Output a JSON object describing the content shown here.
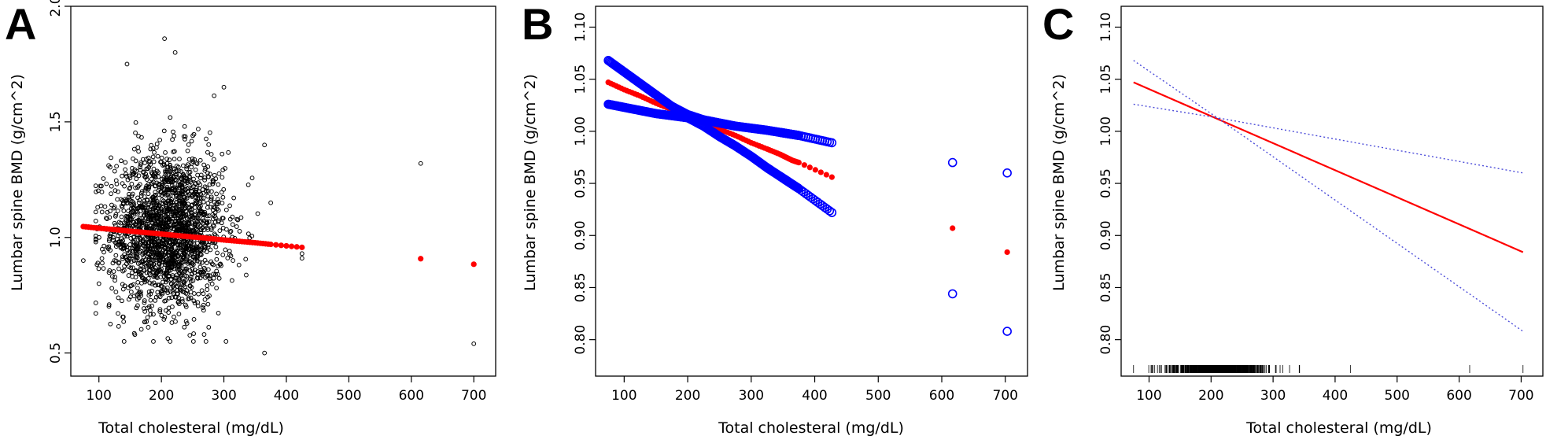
{
  "colors": {
    "points": "#000000",
    "fitted": "#ff0000",
    "ci": "#0000ff",
    "ci_line": "#4d4dd9"
  },
  "chart_data": [
    {
      "panel": "A",
      "type": "scatter",
      "xlabel": "Total cholesteral (mg/dL)",
      "ylabel": "Lumbar spine BMD (g/cm^2)",
      "xlim": [
        55,
        735
      ],
      "ylim": [
        0.4,
        2.0
      ],
      "xticks": [
        100,
        200,
        300,
        400,
        500,
        600,
        700
      ],
      "yticks": [
        0.5,
        1.0,
        1.5,
        2.0
      ],
      "ytick_labels": [
        "0.5",
        "1.0",
        "1.5",
        "2.0"
      ],
      "series": [
        {
          "role": "observed",
          "marker": "open-circle",
          "color": "#000000",
          "distribution": {
            "n": 2000,
            "x_mean": 210,
            "x_sd": 45,
            "y_mean": 1.03,
            "y_sd": 0.17
          },
          "points": [
            [
              75,
              0.9
            ],
            [
              98,
              1.13
            ],
            [
              100,
              0.8
            ],
            [
              105,
              1.11
            ],
            [
              365,
              1.4
            ],
            [
              365,
              0.5
            ],
            [
              375,
              1.15
            ],
            [
              425,
              0.91
            ],
            [
              425,
              0.93
            ],
            [
              615,
              1.32
            ],
            [
              700,
              0.54
            ],
            [
              205,
              1.86
            ],
            [
              222,
              1.8
            ],
            [
              300,
              1.65
            ],
            [
              145,
              1.75
            ]
          ]
        },
        {
          "role": "fitted",
          "marker": "filled-circle",
          "color": "#ff0000",
          "x": [
            75,
            100,
            125,
            150,
            175,
            200,
            225,
            250,
            275,
            300,
            325,
            350,
            375,
            425,
            615,
            700
          ],
          "y": [
            1.047,
            1.04,
            1.034,
            1.027,
            1.021,
            1.015,
            1.008,
            1.002,
            0.996,
            0.989,
            0.983,
            0.977,
            0.97,
            0.957,
            0.908,
            0.884
          ]
        }
      ]
    },
    {
      "panel": "B",
      "type": "scatter",
      "xlabel": "Total cholesteral (mg/dL)",
      "ylabel": "Lumbar spine BMD (g/cm^2)",
      "xlim": [
        55,
        735
      ],
      "ylim": [
        0.765,
        1.12
      ],
      "xticks": [
        100,
        200,
        300,
        400,
        500,
        600,
        700
      ],
      "yticks": [
        0.8,
        0.85,
        0.9,
        0.95,
        1.0,
        1.05,
        1.1
      ],
      "ytick_labels": [
        "0.80",
        "0.85",
        "0.90",
        "0.95",
        "1.00",
        "1.05",
        "1.10"
      ],
      "series": [
        {
          "role": "fitted",
          "marker": "filled-circle",
          "color": "#ff0000",
          "x": [
            75,
            100,
            125,
            150,
            175,
            200,
            225,
            250,
            275,
            300,
            325,
            345,
            355,
            365,
            375,
            427,
            617,
            703
          ],
          "y": [
            1.047,
            1.04,
            1.034,
            1.027,
            1.021,
            1.015,
            1.008,
            1.002,
            0.996,
            0.989,
            0.983,
            0.978,
            0.975,
            0.972,
            0.97,
            0.956,
            0.907,
            0.884
          ]
        },
        {
          "role": "upper-ci",
          "marker": "open-circle",
          "color": "#0000ff",
          "x": [
            75,
            100,
            125,
            150,
            175,
            200,
            225,
            250,
            275,
            300,
            325,
            345,
            355,
            365,
            375,
            427,
            617,
            703
          ],
          "y": [
            1.068,
            1.057,
            1.046,
            1.035,
            1.024,
            1.016,
            1.011,
            1.008,
            1.005,
            1.003,
            1.001,
            0.999,
            0.998,
            0.997,
            0.996,
            0.989,
            0.97,
            0.96
          ]
        },
        {
          "role": "lower-ci",
          "marker": "open-circle",
          "color": "#0000ff",
          "x": [
            75,
            100,
            125,
            150,
            175,
            200,
            225,
            250,
            275,
            300,
            325,
            345,
            355,
            365,
            375,
            427,
            617,
            703
          ],
          "y": [
            1.026,
            1.023,
            1.02,
            1.017,
            1.015,
            1.013,
            1.005,
            0.995,
            0.986,
            0.976,
            0.965,
            0.957,
            0.953,
            0.949,
            0.945,
            0.922,
            0.844,
            0.808
          ]
        }
      ]
    },
    {
      "panel": "C",
      "type": "line",
      "xlabel": "Total cholesteral (mg/dL)",
      "ylabel": "Lumbar spine BMD (g/cm^2)",
      "xlim": [
        55,
        735
      ],
      "ylim": [
        0.765,
        1.12
      ],
      "xticks": [
        100,
        200,
        300,
        400,
        500,
        600,
        700
      ],
      "yticks": [
        0.8,
        0.85,
        0.9,
        0.95,
        1.0,
        1.05,
        1.1
      ],
      "ytick_labels": [
        "0.80",
        "0.85",
        "0.90",
        "0.95",
        "1.00",
        "1.05",
        "1.10"
      ],
      "series": [
        {
          "role": "fitted",
          "style": "solid",
          "color": "#ff0000",
          "x": [
            75,
            703
          ],
          "y": [
            1.047,
            0.884
          ]
        },
        {
          "role": "upper-ci",
          "style": "dotted",
          "color": "#4d4dd9",
          "x": [
            75,
            210,
            703
          ],
          "y": [
            1.026,
            1.013,
            0.96
          ]
        },
        {
          "role": "lower-ci",
          "style": "dotted",
          "color": "#4d4dd9",
          "x": [
            75,
            210,
            703
          ],
          "y": [
            1.068,
            1.013,
            0.808
          ]
        }
      ],
      "rug": {
        "color": "#000000",
        "distribution": {
          "n": 700,
          "x_mean": 210,
          "x_sd": 42,
          "x_min": 95,
          "x_max": 380
        },
        "extra_x": [
          75,
          425,
          617,
          703
        ]
      }
    }
  ]
}
